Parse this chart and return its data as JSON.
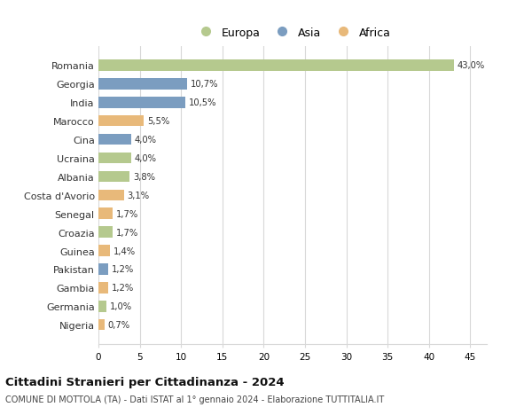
{
  "countries": [
    "Romania",
    "Georgia",
    "India",
    "Marocco",
    "Cina",
    "Ucraina",
    "Albania",
    "Costa d'Avorio",
    "Senegal",
    "Croazia",
    "Guinea",
    "Pakistan",
    "Gambia",
    "Germania",
    "Nigeria"
  ],
  "values": [
    43.0,
    10.7,
    10.5,
    5.5,
    4.0,
    4.0,
    3.8,
    3.1,
    1.7,
    1.7,
    1.4,
    1.2,
    1.2,
    1.0,
    0.7
  ],
  "labels": [
    "43,0%",
    "10,7%",
    "10,5%",
    "5,5%",
    "4,0%",
    "4,0%",
    "3,8%",
    "3,1%",
    "1,7%",
    "1,7%",
    "1,4%",
    "1,2%",
    "1,2%",
    "1,0%",
    "0,7%"
  ],
  "continents": [
    "Europa",
    "Asia",
    "Asia",
    "Africa",
    "Asia",
    "Europa",
    "Europa",
    "Africa",
    "Africa",
    "Europa",
    "Africa",
    "Asia",
    "Africa",
    "Europa",
    "Africa"
  ],
  "colors": {
    "Europa": "#b5c98e",
    "Asia": "#7b9dc0",
    "Africa": "#e8b97a"
  },
  "title": "Cittadini Stranieri per Cittadinanza - 2024",
  "subtitle": "COMUNE DI MOTTOLA (TA) - Dati ISTAT al 1° gennaio 2024 - Elaborazione TUTTITALIA.IT",
  "xlim": [
    0,
    47
  ],
  "xticks": [
    0,
    5,
    10,
    15,
    20,
    25,
    30,
    35,
    40,
    45
  ],
  "bg_color": "#ffffff",
  "grid_color": "#d8d8d8",
  "bar_height": 0.6
}
